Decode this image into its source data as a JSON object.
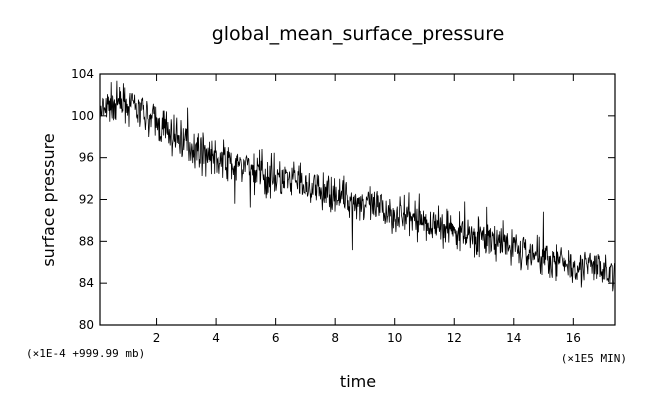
{
  "chart_data": {
    "type": "line",
    "title": "global_mean_surface_pressure",
    "xlabel": "time",
    "ylabel": "surface pressure",
    "x_unit_label": "(×1E5 MIN)",
    "y_unit_label": "(×1E-4 +999.99 mb)",
    "xlim": [
      0.1,
      17.4
    ],
    "ylim": [
      80,
      104
    ],
    "x_ticks": [
      2,
      4,
      6,
      8,
      10,
      12,
      14,
      16
    ],
    "y_ticks": [
      80,
      84,
      88,
      92,
      96,
      100,
      104
    ],
    "line_color": "#000000",
    "series": [
      {
        "x": [
          0.1,
          0.5,
          1.0,
          1.5,
          2.0,
          2.5,
          3.0,
          3.5,
          4.0,
          4.5,
          5.0,
          5.5,
          6.0,
          6.5,
          7.0,
          7.5,
          8.0,
          8.5,
          9.0,
          9.5,
          10.0,
          10.5,
          11.0,
          11.5,
          12.0,
          12.5,
          13.0,
          13.5,
          14.0,
          14.5,
          15.0,
          15.5,
          16.0,
          16.5,
          17.0,
          17.4
        ],
        "values": [
          100.0,
          101.2,
          101.0,
          100.2,
          99.3,
          98.2,
          97.5,
          96.6,
          96.0,
          95.4,
          95.0,
          94.6,
          94.0,
          93.8,
          93.2,
          92.7,
          92.5,
          92.0,
          91.6,
          91.0,
          90.6,
          90.2,
          89.8,
          89.5,
          89.0,
          88.7,
          88.3,
          87.8,
          87.4,
          86.9,
          86.5,
          86.1,
          85.8,
          85.6,
          85.3,
          84.9
        ]
      }
    ]
  }
}
